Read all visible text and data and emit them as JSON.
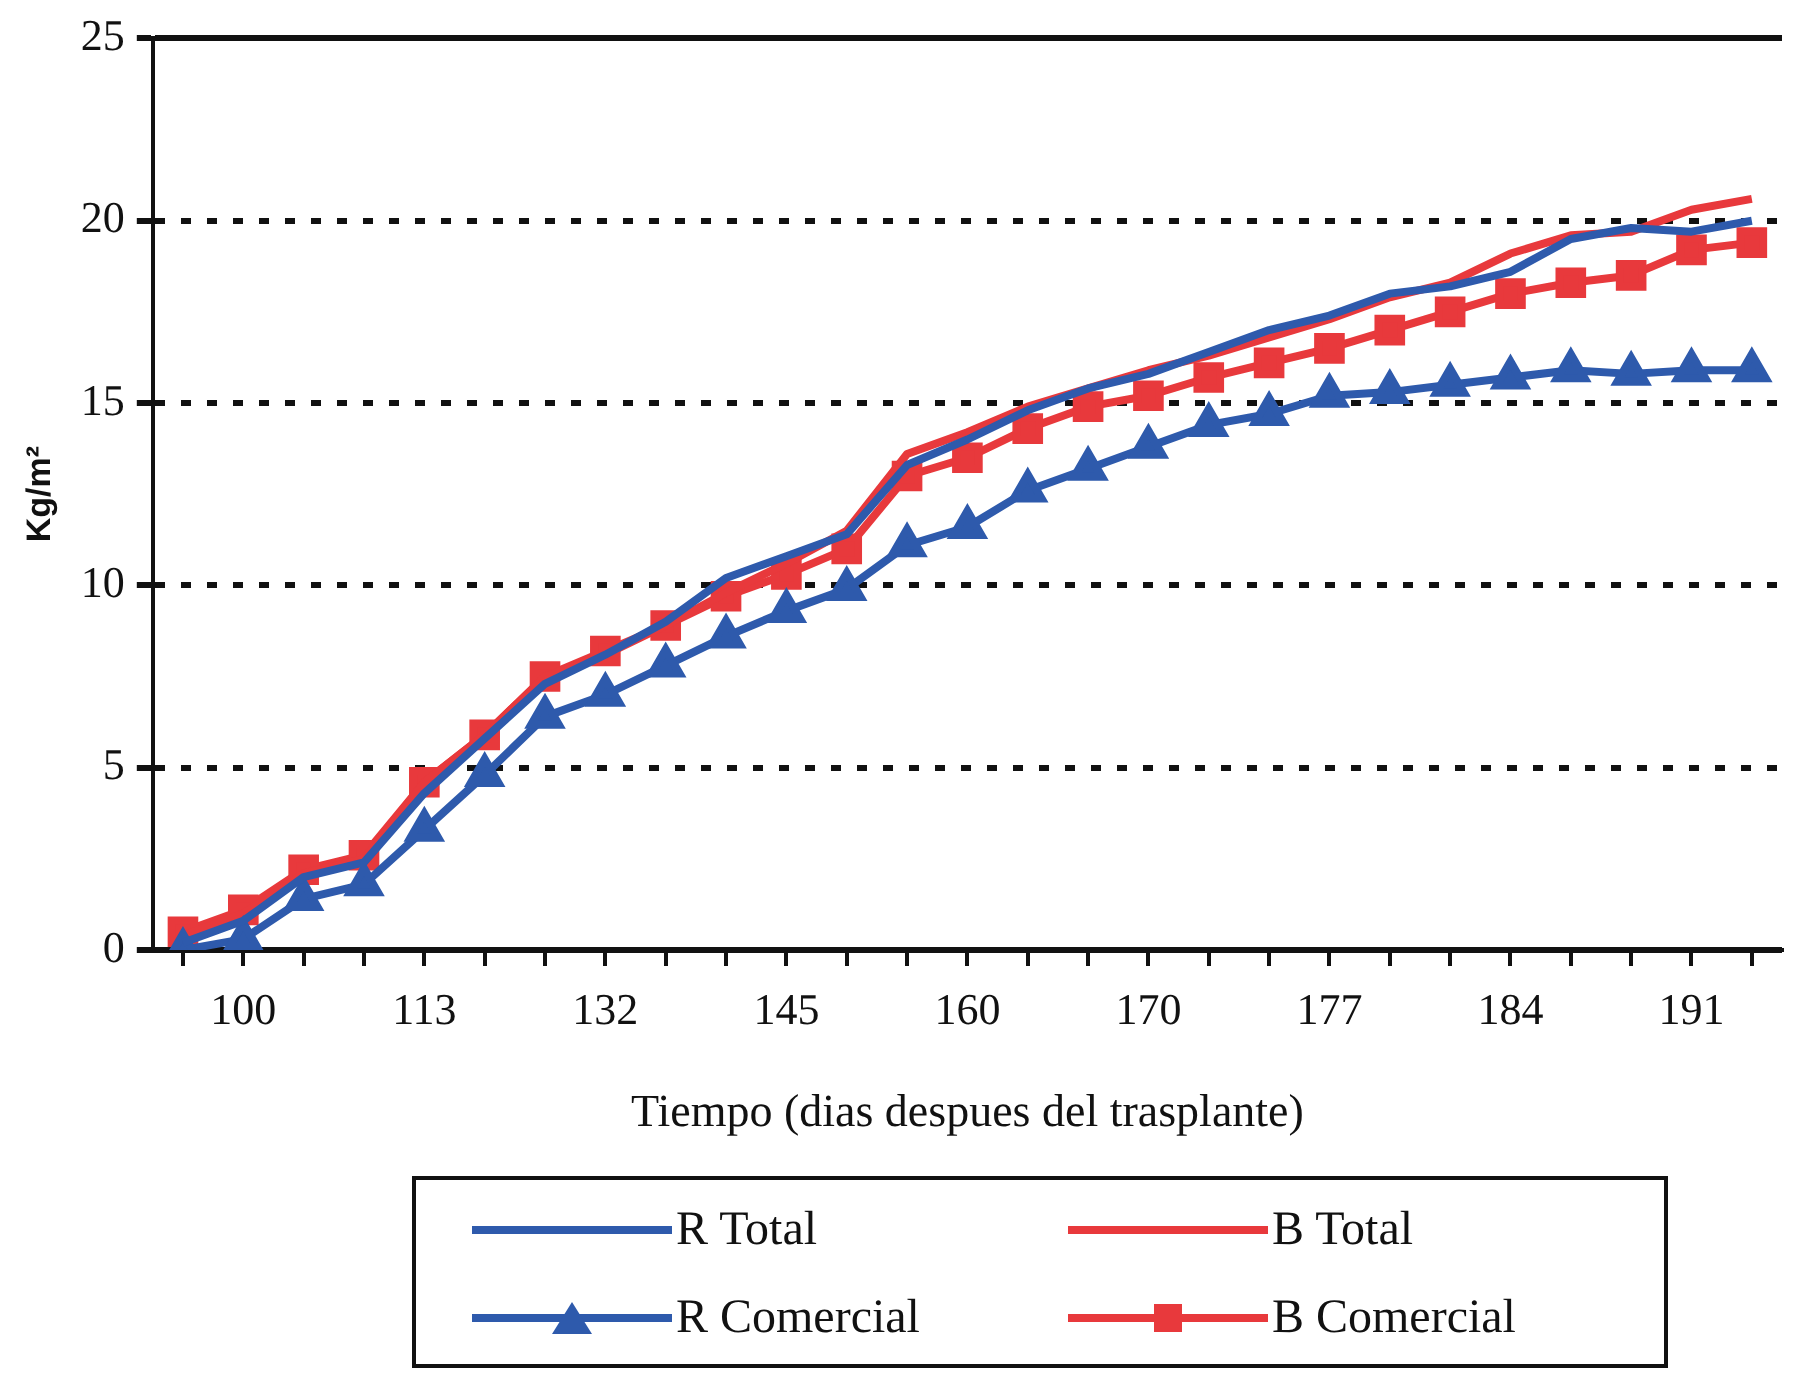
{
  "chart_data": {
    "type": "line",
    "xlabel": "Tiempo (dias despues del trasplante)",
    "ylabel": "Kg/m²",
    "categories": [
      null,
      "100",
      null,
      null,
      "113",
      null,
      null,
      "132",
      null,
      null,
      "145",
      null,
      null,
      "160",
      null,
      null,
      "170",
      null,
      null,
      "177",
      null,
      null,
      "184",
      null,
      null,
      "191",
      null
    ],
    "series": [
      {
        "name": "R Total",
        "color": "#2e5aac",
        "marker": "none",
        "values": [
          0.2,
          0.8,
          2.0,
          2.4,
          4.3,
          5.8,
          7.3,
          8.1,
          9.0,
          10.2,
          10.8,
          11.4,
          13.3,
          14.0,
          14.8,
          15.4,
          15.8,
          16.4,
          17.0,
          17.4,
          18.0,
          18.2,
          18.6,
          19.5,
          19.8,
          19.7,
          20.0
        ]
      },
      {
        "name": "R Comercial",
        "color": "#2e5aac",
        "marker": "triangle",
        "values": [
          0.0,
          0.3,
          1.4,
          1.8,
          3.3,
          4.8,
          6.4,
          7.0,
          7.8,
          8.6,
          9.3,
          9.9,
          11.1,
          11.6,
          12.6,
          13.2,
          13.8,
          14.4,
          14.7,
          15.2,
          15.3,
          15.5,
          15.7,
          15.9,
          15.8,
          15.9,
          15.9
        ]
      },
      {
        "name": "B Total",
        "color": "#e8393c",
        "marker": "none",
        "values": [
          0.4,
          1.0,
          2.1,
          2.5,
          4.6,
          5.9,
          7.5,
          8.1,
          8.9,
          9.8,
          10.6,
          11.5,
          13.6,
          14.2,
          14.9,
          15.4,
          15.9,
          16.3,
          16.8,
          17.3,
          17.9,
          18.3,
          19.1,
          19.6,
          19.7,
          20.3,
          20.6
        ]
      },
      {
        "name": "B Comercial",
        "color": "#e8393c",
        "marker": "square",
        "values": [
          0.5,
          1.1,
          2.2,
          2.6,
          4.6,
          5.9,
          7.5,
          8.2,
          8.9,
          9.7,
          10.3,
          11.0,
          13.0,
          13.5,
          14.3,
          14.9,
          15.2,
          15.7,
          16.1,
          16.5,
          17.0,
          17.5,
          18.0,
          18.3,
          18.5,
          19.2,
          19.4
        ]
      }
    ],
    "ylim": [
      0,
      25
    ],
    "yticks": [
      0,
      5,
      10,
      15,
      20,
      25
    ],
    "grid": "y",
    "legend": "bottom"
  }
}
